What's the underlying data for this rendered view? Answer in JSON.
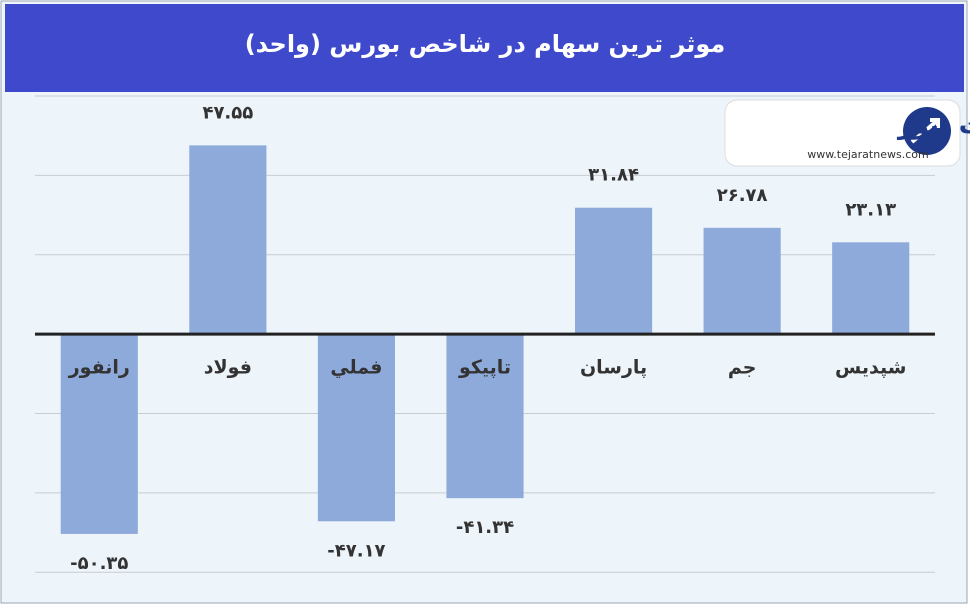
{
  "chart_data": {
    "type": "bar",
    "title": "موثر ترین سهام در شاخص بورس (واحد)",
    "categories": [
      "رانفور",
      "فولاد",
      "فملي",
      "تاپیکو",
      "پارسان",
      "جم",
      "شپدیس"
    ],
    "values": [
      -50.35,
      47.55,
      -47.17,
      -41.34,
      31.84,
      26.78,
      23.13
    ],
    "value_labels": [
      "-۵۰.۳۵",
      "۴۷.۵۵",
      "-۴۷.۱۷",
      "-۴۱.۳۴",
      "۳۱.۸۴",
      "۲۶.۷۸",
      "۲۳.۱۳"
    ],
    "color": "#8eaadb",
    "ylim": [
      -67,
      61
    ],
    "yticks": [
      -60,
      -40,
      -20,
      0,
      20,
      40,
      60
    ],
    "grid": true
  },
  "logo": {
    "name": "تجارت نیوز",
    "url": "www.tejaratnews.com"
  }
}
